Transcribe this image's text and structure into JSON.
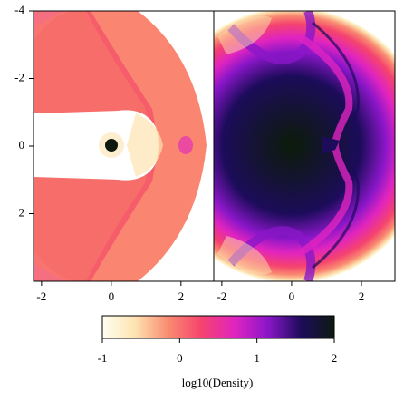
{
  "chart_data": {
    "type": "image",
    "ylim": [
      -4,
      4
    ],
    "y_inverted": true,
    "yticks": [
      -4,
      -2,
      0,
      2
    ],
    "panels": [
      {
        "xlim": [
          -2.23,
          2.94
        ],
        "xticks": [
          -2,
          0,
          2
        ]
      },
      {
        "xlim": [
          -2.23,
          2.96
        ],
        "xticks": [
          -2,
          0,
          2
        ]
      }
    ],
    "colorbar": {
      "label": "log10(Density)",
      "xlim": [
        -1,
        2
      ],
      "xticks": [
        -1,
        0,
        1,
        2
      ],
      "colormap": [
        "#fffff0",
        "#fde2b0",
        "#f98a70",
        "#f5436e",
        "#e024c0",
        "#8a16c8",
        "#1c0c5a",
        "#0d1a10"
      ]
    }
  }
}
